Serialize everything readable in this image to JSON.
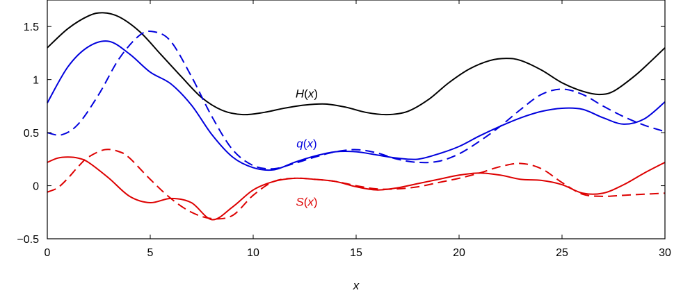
{
  "chart_data": {
    "type": "line",
    "title": "",
    "xlabel": "x",
    "ylabel": "",
    "xlim": [
      0,
      30
    ],
    "ylim": [
      -0.5,
      1.75
    ],
    "x_ticks": [
      0,
      5,
      10,
      15,
      20,
      25,
      30
    ],
    "x_tick_labels": [
      "0",
      "5",
      "10",
      "15",
      "20",
      "25",
      "30"
    ],
    "y_ticks": [
      -0.5,
      0,
      0.5,
      1,
      1.5
    ],
    "y_tick_labels": [
      "−0.5",
      "0",
      "0.5",
      "1",
      "1.5"
    ],
    "grid": false,
    "legend": "none",
    "colors": {
      "H": "#000000",
      "q": "#0000dd",
      "S": "#dd0000"
    },
    "series": [
      {
        "label": "H(x)",
        "color": "#000000",
        "dash": "solid",
        "x": [
          0,
          1,
          2,
          2.7,
          3.5,
          4.5,
          5.5,
          6.5,
          7.5,
          8.5,
          9.5,
          10.5,
          11.5,
          12.5,
          13.5,
          14.5,
          15.5,
          16.5,
          17.5,
          18.5,
          19.5,
          20.5,
          21.5,
          22.3,
          23,
          24,
          25,
          26,
          26.8,
          27.5,
          28.5,
          29.3,
          30
        ],
        "y": [
          1.3,
          1.48,
          1.6,
          1.63,
          1.59,
          1.45,
          1.24,
          1.03,
          0.83,
          0.71,
          0.67,
          0.69,
          0.73,
          0.76,
          0.77,
          0.74,
          0.69,
          0.67,
          0.7,
          0.81,
          0.97,
          1.1,
          1.18,
          1.2,
          1.18,
          1.09,
          0.97,
          0.89,
          0.86,
          0.89,
          1.03,
          1.17,
          1.3
        ]
      },
      {
        "label": "q(x)",
        "color": "#0000dd",
        "dash": "solid",
        "x": [
          0,
          1,
          2,
          3,
          4,
          5,
          6,
          7,
          8,
          9,
          10,
          11,
          12,
          13,
          14,
          15,
          16,
          17,
          18,
          19,
          20,
          21,
          22,
          23,
          24,
          25,
          26,
          27,
          28,
          29,
          30
        ],
        "y": [
          0.78,
          1.12,
          1.31,
          1.36,
          1.24,
          1.07,
          0.96,
          0.76,
          0.48,
          0.27,
          0.17,
          0.15,
          0.22,
          0.28,
          0.32,
          0.32,
          0.29,
          0.26,
          0.25,
          0.3,
          0.37,
          0.47,
          0.56,
          0.64,
          0.7,
          0.73,
          0.72,
          0.64,
          0.58,
          0.63,
          0.79
        ]
      },
      {
        "label": "q(x) dashed",
        "color": "#0000dd",
        "dash": "dashed",
        "x": [
          0,
          0.7,
          1.5,
          2.5,
          3.5,
          4.5,
          5.2,
          6,
          7,
          8,
          9,
          10,
          11,
          12,
          13,
          14,
          15,
          16,
          17,
          18,
          19,
          20,
          21,
          22,
          23,
          24,
          25,
          26,
          27,
          28,
          29,
          30
        ],
        "y": [
          0.5,
          0.48,
          0.58,
          0.86,
          1.2,
          1.42,
          1.45,
          1.36,
          1.03,
          0.65,
          0.34,
          0.19,
          0.16,
          0.21,
          0.27,
          0.32,
          0.34,
          0.31,
          0.25,
          0.22,
          0.23,
          0.3,
          0.42,
          0.56,
          0.72,
          0.86,
          0.91,
          0.86,
          0.75,
          0.65,
          0.57,
          0.51
        ]
      },
      {
        "label": "S(x)",
        "color": "#dd0000",
        "dash": "solid",
        "x": [
          0,
          0.5,
          1,
          1.5,
          2,
          3,
          4,
          5,
          6,
          7,
          8,
          9,
          10,
          11,
          12,
          13,
          14,
          15,
          16,
          17,
          18,
          19,
          20,
          21,
          22,
          23,
          24,
          25,
          26,
          27,
          28,
          29,
          30
        ],
        "y": [
          0.22,
          0.26,
          0.27,
          0.26,
          0.22,
          0.07,
          -0.1,
          -0.16,
          -0.12,
          -0.16,
          -0.32,
          -0.2,
          -0.04,
          0.04,
          0.07,
          0.06,
          0.04,
          -0.01,
          -0.04,
          -0.02,
          0.02,
          0.06,
          0.1,
          0.12,
          0.1,
          0.06,
          0.05,
          0.01,
          -0.07,
          -0.07,
          0.01,
          0.12,
          0.22
        ]
      },
      {
        "label": "S(x) dashed",
        "color": "#dd0000",
        "dash": "dashed",
        "x": [
          0,
          0.5,
          1,
          1.5,
          2,
          2.8,
          3.5,
          4,
          5,
          6,
          7,
          8,
          9,
          10,
          11,
          12,
          13,
          14,
          15,
          16,
          17,
          18,
          19,
          20,
          21,
          22,
          23,
          24,
          25,
          26,
          27,
          28,
          29,
          30
        ],
        "y": [
          -0.06,
          -0.02,
          0.07,
          0.18,
          0.27,
          0.34,
          0.32,
          0.26,
          0.06,
          -0.12,
          -0.25,
          -0.31,
          -0.28,
          -0.09,
          0.04,
          0.07,
          0.06,
          0.04,
          0.0,
          -0.03,
          -0.03,
          -0.01,
          0.03,
          0.07,
          0.12,
          0.18,
          0.21,
          0.16,
          0.03,
          -0.08,
          -0.1,
          -0.09,
          -0.08,
          -0.07
        ]
      }
    ],
    "annotations": [
      {
        "text": "H(x)",
        "x": 12.6,
        "y": 0.83,
        "color": "#000000"
      },
      {
        "text": "q(x)",
        "x": 12.6,
        "y": 0.36,
        "color": "#0000dd"
      },
      {
        "text": "S(x)",
        "x": 12.6,
        "y": -0.19,
        "color": "#dd0000"
      }
    ]
  }
}
